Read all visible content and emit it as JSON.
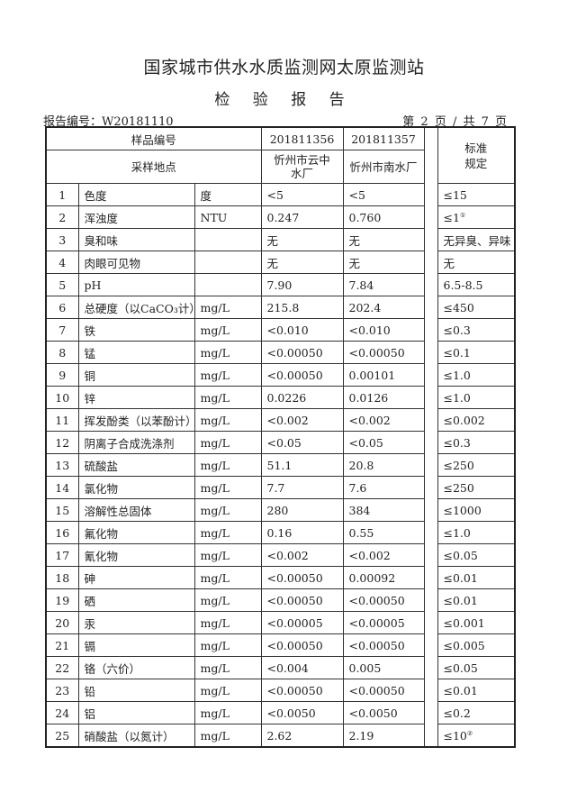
{
  "header": {
    "org_title": "国家城市供水水质监测网太原监测站",
    "report_title": "检 验 报 告",
    "report_number_label": "报告编号：",
    "report_number": "W20181110",
    "page_info": "第 2 页 / 共 7 页"
  },
  "table": {
    "sample_id_label": "样品编号",
    "sample_site_label": "采样地点",
    "standard_label": "标准\n规定",
    "samples": [
      {
        "id": "201811356",
        "site": "忻州市云中水厂"
      },
      {
        "id": "201811357",
        "site": "忻州市南水厂"
      }
    ],
    "rows": [
      {
        "no": "1",
        "item": "色度",
        "unit": "度",
        "v1": "<5",
        "v2": "<5",
        "std": "≤15"
      },
      {
        "no": "2",
        "item": "浑浊度",
        "unit": "NTU",
        "v1": "0.247",
        "v2": "0.760",
        "std": "≤1",
        "note": "①"
      },
      {
        "no": "3",
        "item": "臭和味",
        "unit": "",
        "v1": "无",
        "v2": "无",
        "std": "无异臭、异味"
      },
      {
        "no": "4",
        "item": "肉眼可见物",
        "unit": "",
        "v1": "无",
        "v2": "无",
        "std": "无"
      },
      {
        "no": "5",
        "item": "pH",
        "unit": "",
        "v1": "7.90",
        "v2": "7.84",
        "std": "6.5-8.5"
      },
      {
        "no": "6",
        "item": "总硬度（以CaCO₃计）",
        "unit": "mg/L",
        "v1": "215.8",
        "v2": "202.4",
        "std": "≤450"
      },
      {
        "no": "7",
        "item": "铁",
        "unit": "mg/L",
        "v1": "<0.010",
        "v2": "<0.010",
        "std": "≤0.3"
      },
      {
        "no": "8",
        "item": "锰",
        "unit": "mg/L",
        "v1": "<0.00050",
        "v2": "<0.00050",
        "std": "≤0.1"
      },
      {
        "no": "9",
        "item": "铜",
        "unit": "mg/L",
        "v1": "<0.00050",
        "v2": "0.00101",
        "std": "≤1.0"
      },
      {
        "no": "10",
        "item": "锌",
        "unit": "mg/L",
        "v1": "0.0226",
        "v2": "0.0126",
        "std": "≤1.0"
      },
      {
        "no": "11",
        "item": "挥发酚类（以苯酚计）",
        "unit": "mg/L",
        "v1": "<0.002",
        "v2": "<0.002",
        "std": "≤0.002"
      },
      {
        "no": "12",
        "item": "阴离子合成洗涤剂",
        "unit": "mg/L",
        "v1": "<0.05",
        "v2": "<0.05",
        "std": "≤0.3"
      },
      {
        "no": "13",
        "item": "硫酸盐",
        "unit": "mg/L",
        "v1": "51.1",
        "v2": "20.8",
        "std": "≤250"
      },
      {
        "no": "14",
        "item": "氯化物",
        "unit": "mg/L",
        "v1": "7.7",
        "v2": "7.6",
        "std": "≤250"
      },
      {
        "no": "15",
        "item": "溶解性总固体",
        "unit": "mg/L",
        "v1": "280",
        "v2": "384",
        "std": "≤1000"
      },
      {
        "no": "16",
        "item": "氟化物",
        "unit": "mg/L",
        "v1": "0.16",
        "v2": "0.55",
        "std": "≤1.0"
      },
      {
        "no": "17",
        "item": "氰化物",
        "unit": "mg/L",
        "v1": "<0.002",
        "v2": "<0.002",
        "std": "≤0.05"
      },
      {
        "no": "18",
        "item": "砷",
        "unit": "mg/L",
        "v1": "<0.00050",
        "v2": "0.00092",
        "std": "≤0.01"
      },
      {
        "no": "19",
        "item": "硒",
        "unit": "mg/L",
        "v1": "<0.00050",
        "v2": "<0.00050",
        "std": "≤0.01"
      },
      {
        "no": "20",
        "item": "汞",
        "unit": "mg/L",
        "v1": "<0.00005",
        "v2": "<0.00005",
        "std": "≤0.001"
      },
      {
        "no": "21",
        "item": "镉",
        "unit": "mg/L",
        "v1": "<0.00050",
        "v2": "<0.00050",
        "std": "≤0.005"
      },
      {
        "no": "22",
        "item": "铬（六价）",
        "unit": "mg/L",
        "v1": "<0.004",
        "v2": "0.005",
        "std": "≤0.05"
      },
      {
        "no": "23",
        "item": "铅",
        "unit": "mg/L",
        "v1": "<0.00050",
        "v2": "<0.00050",
        "std": "≤0.01"
      },
      {
        "no": "24",
        "item": "铝",
        "unit": "mg/L",
        "v1": "<0.0050",
        "v2": "<0.0050",
        "std": "≤0.2"
      },
      {
        "no": "25",
        "item": "硝酸盐（以氮计）",
        "unit": "mg/L",
        "v1": "2.62",
        "v2": "2.19",
        "std": "≤10",
        "note": "②"
      }
    ]
  }
}
